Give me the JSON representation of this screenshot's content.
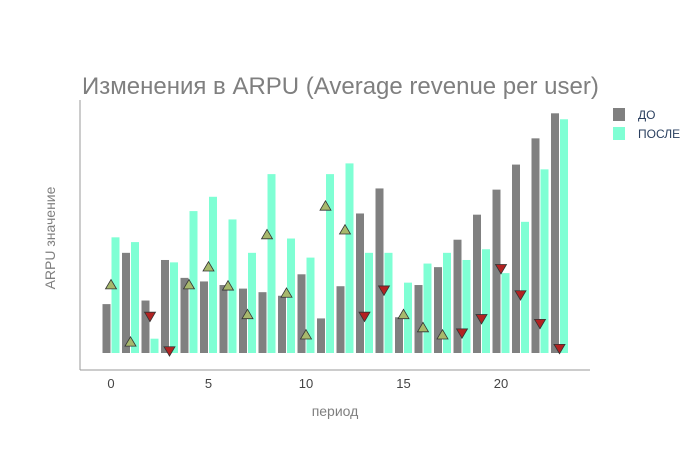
{
  "chart_data": {
    "type": "bar",
    "title": "Изменения в ARPU (Average revenue per user)",
    "xlabel": "период",
    "ylabel": "ARPU значение",
    "x": [
      0,
      1,
      2,
      3,
      4,
      5,
      6,
      7,
      8,
      9,
      10,
      11,
      12,
      13,
      14,
      15,
      16,
      17,
      18,
      19,
      20,
      21,
      22,
      23
    ],
    "xticks": [
      0,
      5,
      10,
      15,
      20
    ],
    "ylim": [
      0,
      10
    ],
    "grid": false,
    "legend_position": "top-right",
    "series": [
      {
        "name": "ДО",
        "color": "#808080",
        "values": [
          2.05,
          4.2,
          2.2,
          3.9,
          3.15,
          3.0,
          2.85,
          2.7,
          2.55,
          2.4,
          3.3,
          1.45,
          2.8,
          5.85,
          6.9,
          1.5,
          2.85,
          3.6,
          4.75,
          5.8,
          6.85,
          7.9,
          9.0,
          10.05
        ]
      },
      {
        "name": "ПОСЛЕ",
        "color": "#7fffd4",
        "values": [
          4.85,
          4.65,
          0.6,
          3.8,
          5.95,
          6.55,
          5.6,
          4.2,
          7.5,
          4.8,
          4.0,
          7.5,
          7.95,
          4.2,
          4.2,
          2.95,
          3.75,
          4.2,
          3.9,
          4.35,
          3.35,
          5.5,
          7.7,
          9.8
        ]
      }
    ],
    "markers": {
      "increase": {
        "symbol": "triangle-up",
        "color": "#a7b86c",
        "points": [
          [
            0,
            2.85
          ],
          [
            1,
            0.45
          ],
          [
            4,
            2.85
          ],
          [
            5,
            3.6
          ],
          [
            6,
            2.8
          ],
          [
            7,
            1.6
          ],
          [
            8,
            4.95
          ],
          [
            9,
            2.5
          ],
          [
            10,
            0.75
          ],
          [
            11,
            6.15
          ],
          [
            12,
            5.15
          ],
          [
            15,
            1.6
          ],
          [
            16,
            1.05
          ],
          [
            17,
            0.75
          ]
        ]
      },
      "decrease": {
        "symbol": "triangle-down",
        "color": "#b22222",
        "points": [
          [
            2,
            1.55
          ],
          [
            3,
            0.1
          ],
          [
            13,
            1.55
          ],
          [
            14,
            2.65
          ],
          [
            18,
            0.85
          ],
          [
            19,
            1.45
          ],
          [
            20,
            3.55
          ],
          [
            21,
            2.45
          ],
          [
            22,
            1.25
          ],
          [
            23,
            0.2
          ]
        ]
      }
    }
  }
}
